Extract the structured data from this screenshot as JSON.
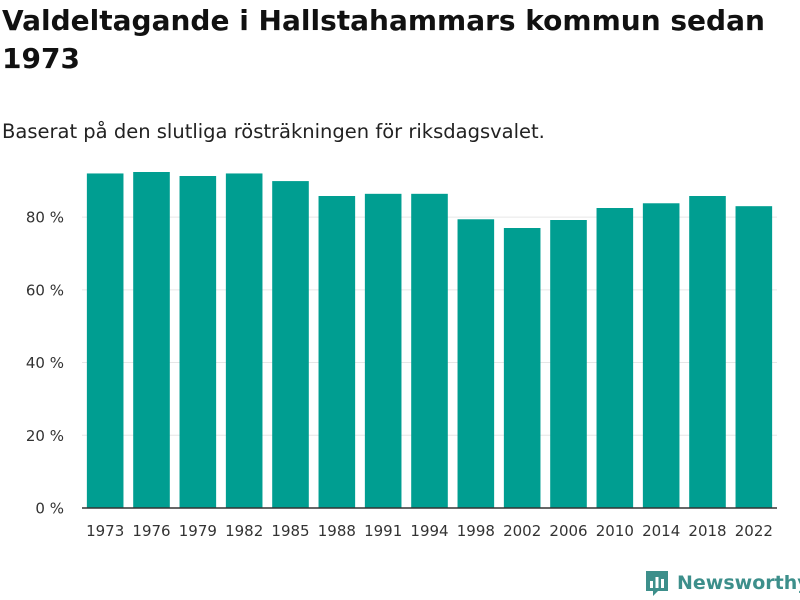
{
  "header": {
    "title": "Valdeltagande i Hallstahammars kommun sedan 1973",
    "subtitle": "Baserat på den slutliga rösträkningen för riksdagsvalet."
  },
  "footer": {
    "brand": "Newsworthy"
  },
  "colors": {
    "bar": "#009e91",
    "grid": "#e6e6e6",
    "axis": "#333333",
    "brand": "#3d8f8b"
  },
  "chart_data": {
    "type": "bar",
    "title": "Valdeltagande i Hallstahammars kommun sedan 1973",
    "subtitle": "Baserat på den slutliga rösträkningen för riksdagsvalet.",
    "categories": [
      "1973",
      "1976",
      "1979",
      "1982",
      "1985",
      "1988",
      "1991",
      "1994",
      "1998",
      "2002",
      "2006",
      "2010",
      "2014",
      "2018",
      "2022"
    ],
    "values": [
      92.0,
      92.4,
      91.3,
      92.0,
      89.9,
      85.8,
      86.4,
      86.4,
      79.4,
      77.0,
      79.2,
      82.5,
      83.8,
      85.8,
      83.0
    ],
    "ylim": [
      0,
      92.4
    ],
    "yticks": [
      0,
      20,
      40,
      60,
      80
    ],
    "ytick_labels": [
      "0 %",
      "20 %",
      "40 %",
      "60 %",
      "80 %"
    ],
    "xlabel": "",
    "ylabel": "",
    "grid": true,
    "legend": "none"
  }
}
